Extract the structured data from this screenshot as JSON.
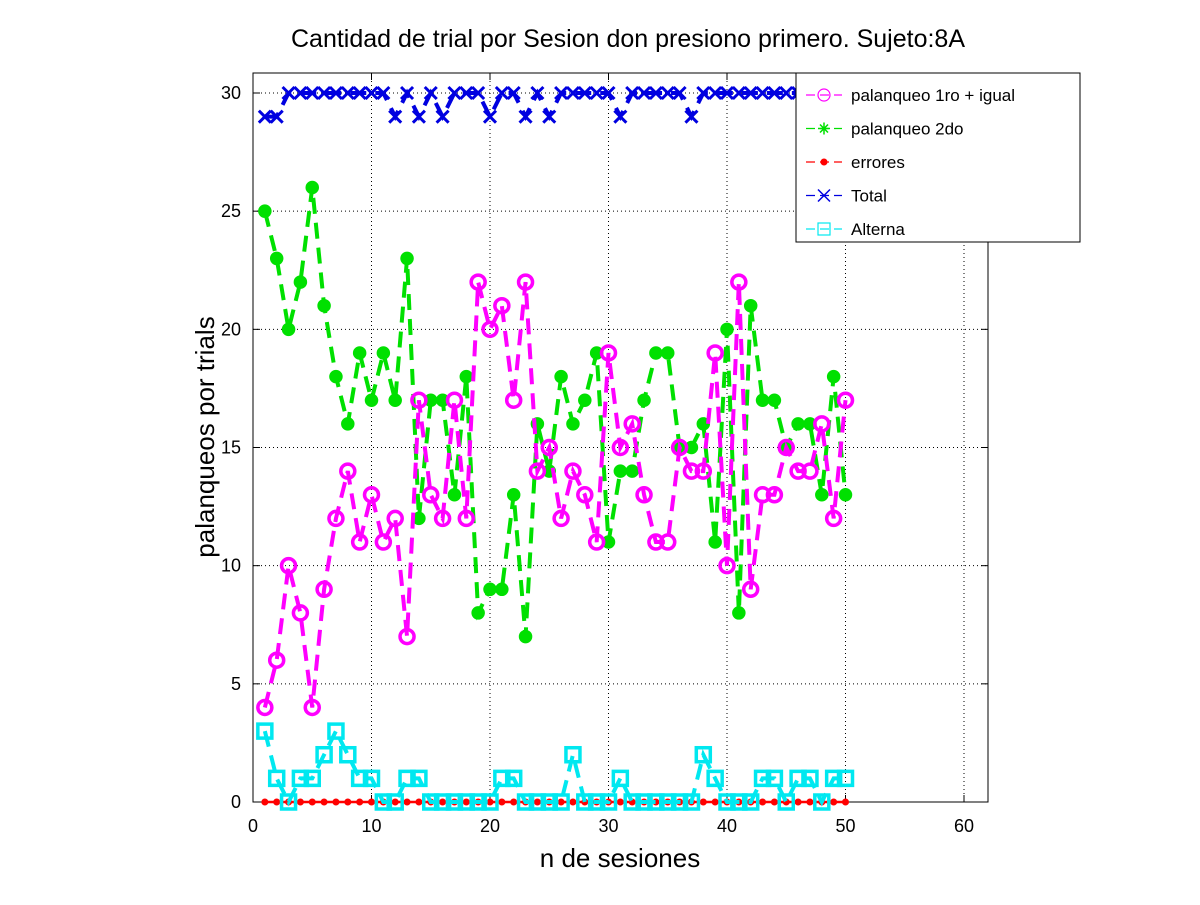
{
  "chart_data": {
    "type": "line",
    "title": "Cantidad de trial por Sesion don presiono primero. Sujeto:8A",
    "xlabel": "n de sesiones",
    "ylabel": "palanqueos por trials",
    "xlim": [
      0,
      62
    ],
    "ylim": [
      0,
      30.5
    ],
    "xticks": [
      0,
      10,
      20,
      30,
      40,
      50,
      60
    ],
    "yticks": [
      0,
      5,
      10,
      15,
      20,
      25,
      30
    ],
    "grid": true,
    "legend_position": "top-right",
    "x": [
      1,
      2,
      3,
      4,
      5,
      6,
      7,
      8,
      9,
      10,
      11,
      12,
      13,
      14,
      15,
      16,
      17,
      18,
      19,
      20,
      21,
      22,
      23,
      24,
      25,
      26,
      27,
      28,
      29,
      30,
      31,
      32,
      33,
      34,
      35,
      36,
      37,
      38,
      39,
      40,
      41,
      42,
      43,
      44,
      45,
      46,
      47,
      48,
      49,
      50
    ],
    "series": [
      {
        "name": "palanqueo 1ro + igual",
        "color": "#ff00ff",
        "marker": "circle",
        "values": [
          4,
          6,
          10,
          8,
          4,
          9,
          12,
          14,
          11,
          13,
          11,
          12,
          7,
          17,
          13,
          12,
          17,
          12,
          22,
          20,
          21,
          17,
          22,
          14,
          15,
          12,
          14,
          13,
          11,
          19,
          15,
          16,
          13,
          11,
          11,
          15,
          14,
          14,
          19,
          10,
          22,
          9,
          13,
          13,
          15,
          14,
          14,
          16,
          12,
          17
        ]
      },
      {
        "name": "palanqueo 2do",
        "color": "#00e000",
        "marker": "star",
        "values": [
          25,
          23,
          20,
          22,
          26,
          21,
          18,
          16,
          19,
          17,
          19,
          17,
          23,
          12,
          17,
          17,
          13,
          18,
          8,
          9,
          9,
          13,
          7,
          16,
          14,
          18,
          16,
          17,
          19,
          11,
          14,
          14,
          17,
          19,
          19,
          15,
          15,
          16,
          11,
          20,
          8,
          21,
          17,
          17,
          15,
          16,
          16,
          13,
          18,
          13
        ]
      },
      {
        "name": "errores",
        "color": "#ff0000",
        "marker": "dot",
        "values": [
          0,
          0,
          0,
          0,
          0,
          0,
          0,
          0,
          0,
          0,
          0,
          0,
          0,
          0,
          0,
          0,
          0,
          0,
          0,
          0,
          0,
          0,
          0,
          0,
          0,
          0,
          0,
          0,
          0,
          0,
          0,
          0,
          0,
          0,
          0,
          0,
          0,
          0,
          0,
          0,
          0,
          0,
          0,
          0,
          0,
          0,
          0,
          0,
          0,
          0
        ]
      },
      {
        "name": "Total",
        "color": "#0000e0",
        "marker": "x",
        "values": [
          29,
          29,
          30,
          30,
          30,
          30,
          30,
          30,
          30,
          30,
          30,
          29,
          30,
          29,
          30,
          29,
          30,
          30,
          30,
          29,
          30,
          30,
          29,
          30,
          29,
          30,
          30,
          30,
          30,
          30,
          29,
          30,
          30,
          30,
          30,
          30,
          29,
          30,
          30,
          30,
          30,
          30,
          30,
          30,
          30,
          30,
          30,
          30,
          30,
          30
        ]
      },
      {
        "name": "Alterna",
        "color": "#00e8f0",
        "marker": "square",
        "values": [
          3,
          1,
          0,
          1,
          1,
          2,
          3,
          2,
          1,
          1,
          0,
          0,
          1,
          1,
          0,
          0,
          0,
          0,
          0,
          0,
          1,
          1,
          0,
          0,
          0,
          0,
          2,
          0,
          0,
          0,
          1,
          0,
          0,
          0,
          0,
          0,
          0,
          2,
          1,
          0,
          0,
          0,
          1,
          1,
          0,
          1,
          1,
          0,
          1,
          1
        ]
      }
    ]
  }
}
